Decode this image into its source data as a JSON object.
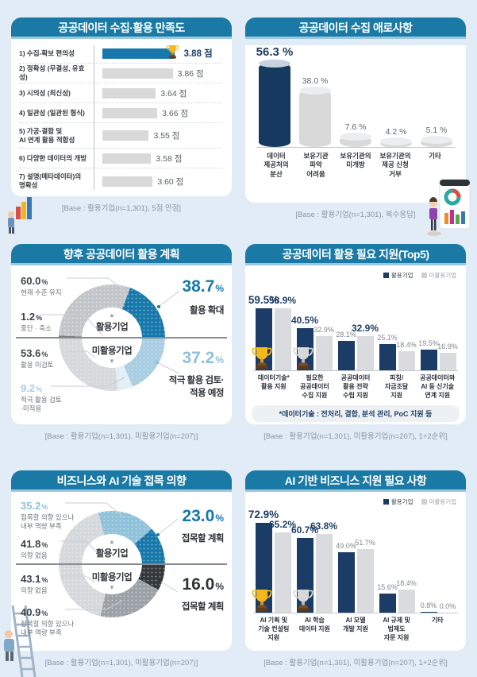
{
  "units": {
    "pct": "%"
  },
  "donut_center": {
    "up": "▲",
    "down": "▼",
    "top": "활용기업",
    "bottom": "미활용기업"
  },
  "chart_data": [
    {
      "type": "bar",
      "orientation": "horizontal",
      "title": "공공데이터 수집·활용 만족도",
      "base": "[Base : 활용기업(n=1,301), 5점 만점]",
      "ylim": [
        0,
        5
      ],
      "categories": [
        "1) 수집-확보 편의성",
        "2) 정확성 (무결성, 유효성)",
        "3) 시의성 (최신성)",
        "4) 일관성 (일관된 형식)",
        "5) 가공·결합 및\nAI 연계 활용 적합성",
        "6) 다양한 데이터의 개방",
        "7) 설명(메타데이터)의\n명확성"
      ],
      "values": [
        3.88,
        3.86,
        3.64,
        3.66,
        3.55,
        3.58,
        3.6
      ],
      "labels": [
        "3.88 점",
        "3.86 점",
        "3.64 점",
        "3.66 점",
        "3.55 점",
        "3.58 점",
        "3.60 점"
      ],
      "highlight_index": 0
    },
    {
      "type": "bar",
      "orientation": "vertical",
      "title": "공공데이터 수집 애로사항",
      "base": "[Base : 활용기업(n=1,301), 복수응답]",
      "ylim": [
        0,
        60
      ],
      "categories": [
        "데이터\n제공처의\n분산",
        "보유기관\n파악\n어려움",
        "보유기관의\n미개방",
        "보유기관의\n제공 신청\n거부",
        "기타"
      ],
      "values": [
        56.3,
        38.0,
        7.6,
        4.2,
        5.1
      ],
      "labels": [
        "56.3 %",
        "38.0 %",
        "7.6 %",
        "4.2 %",
        "5.1 %"
      ],
      "highlight_index": 0
    },
    {
      "type": "pie",
      "variant": "double-half-donut",
      "title": "향후 공공데이터 활용 계획",
      "base": "[Base : 활용기업(n=1,301), 미활용기업(n=207)]",
      "top_half": {
        "group": "활용기업",
        "segments": [
          {
            "label": "중단·축소",
            "value": 1.2,
            "color": "#787e84"
          },
          {
            "label": "현재 수준 유지",
            "value": 60.0,
            "color": "#c2c6ca"
          },
          {
            "label": "활용 확대",
            "value": 38.7,
            "color": "#1779ab"
          }
        ]
      },
      "bottom_half": {
        "group": "미활용기업",
        "segments": [
          {
            "label": "적극 활용 검토·적용 예정",
            "value": 37.2,
            "color": "#a9cde1"
          },
          {
            "label": "적극 활용 검토·미적용",
            "value": 9.2,
            "color": "#e2eef6"
          },
          {
            "label": "활용 미검토",
            "value": 53.6,
            "color": "#d6d9dc"
          }
        ]
      },
      "left_labels": [
        {
          "pct": "60.0",
          "desc": "현재 수준 유지"
        },
        {
          "pct": "1.2",
          "desc": "중단 · 축소"
        },
        {
          "pct": "53.6",
          "desc": "활용 미검토"
        },
        {
          "pct": "9.2",
          "desc": "적극 활용 검토\n·미적용"
        }
      ],
      "right_labels": [
        {
          "pct": "38.7",
          "desc": "활용 확대"
        },
        {
          "pct": "37.2",
          "desc": "적극 활용 검토·\n적용 예정"
        }
      ]
    },
    {
      "type": "bar",
      "variant": "grouped",
      "title": "공공데이터 활용 필요 지원(Top5)",
      "base": "[Base : 활용기업(n=1,301), 미활용기업(n=207), 1+2순위]",
      "footnote": "*데이터기술 : 전처리, 결합, 분석 관리, PoC 지원 등",
      "ylim": [
        0,
        85
      ],
      "categories": [
        "데이터기술*\n활용 지원",
        "필요한\n공공데이터\n수집 지원",
        "공공데이터\n활용 전략\n수립 지원",
        "피칭/\n자금조달\n지원",
        "공공데이터와\nAI 등 신기술\n연계 지원"
      ],
      "series": [
        {
          "name": "활용기업",
          "values": [
            59.5,
            40.5,
            28.1,
            25.1,
            19.5
          ],
          "labels": [
            "59.5%",
            "40.5%",
            "28.1%",
            "25.1%",
            "19.5%"
          ]
        },
        {
          "name": "미활용기업",
          "values": [
            58.9,
            32.9,
            32.9,
            18.4,
            16.9
          ],
          "labels": [
            "58.9%",
            "32.9%",
            "32.9%",
            "18.4%",
            "16.9%"
          ]
        }
      ]
    },
    {
      "type": "pie",
      "variant": "double-half-donut",
      "title": "비즈니스와 AI 기술 접목 의향",
      "base": "[Base : 활용기업(n=1,301), 미활용기업(n=207)]",
      "top_half": {
        "group": "활용기업",
        "segments": [
          {
            "label": "의향 없음",
            "value": 41.8,
            "color": "#d6d9dc"
          },
          {
            "label": "접목할 의향 있으나 내부 역량 부족",
            "value": 35.2,
            "color": "#8fc2db"
          },
          {
            "label": "접목할 계획",
            "value": 23.0,
            "color": "#1779ab"
          }
        ]
      },
      "bottom_half": {
        "group": "미활용기업",
        "segments": [
          {
            "label": "접목할 계획",
            "value": 16.0,
            "color": "#33383d"
          },
          {
            "label": "접목할 의향 있으나 내부 역량 부족",
            "value": 40.9,
            "color": "#9ba1a7"
          },
          {
            "label": "의향 없음",
            "value": 43.1,
            "color": "#d6d9dc"
          }
        ]
      },
      "left_labels": [
        {
          "pct": "35.2",
          "desc": "접목할 의향 있으나\n내부 역량 부족"
        },
        {
          "pct": "41.8",
          "desc": "의향 없음"
        },
        {
          "pct": "43.1",
          "desc": "의향 없음"
        },
        {
          "pct": "40.9",
          "desc": "접목할 의향 있으나\n내부 역량 부족"
        }
      ],
      "right_labels": [
        {
          "pct": "23.0",
          "desc": "접목할 계획"
        },
        {
          "pct": "16.0",
          "desc": "접목할 계획"
        }
      ]
    },
    {
      "type": "bar",
      "variant": "grouped",
      "title": "AI 기반 비즈니스 지원 필요 사항",
      "base": "[Base : 활용기업(n=1,301), 미활용기업(n=207), 1+2순위]",
      "ylim": [
        0,
        85
      ],
      "categories": [
        "AI 기획 및\n기술 컨설팅\n지원",
        "AI 학습\n데이터 지원",
        "AI 모델\n개발 지원",
        "AI 규제 및\n법제도\n자문 지원",
        "기타"
      ],
      "series": [
        {
          "name": "활용기업",
          "values": [
            72.9,
            60.7,
            49.0,
            15.6,
            0.8
          ],
          "labels": [
            "72.9%",
            "60.7%",
            "49.0%",
            "15.6%",
            "0.8%"
          ]
        },
        {
          "name": "미활용기업",
          "values": [
            65.2,
            63.8,
            51.7,
            18.4,
            0.0
          ],
          "labels": [
            "65.2%",
            "63.8%",
            "51.7%",
            "18.4%",
            "0.0%"
          ]
        }
      ]
    }
  ]
}
